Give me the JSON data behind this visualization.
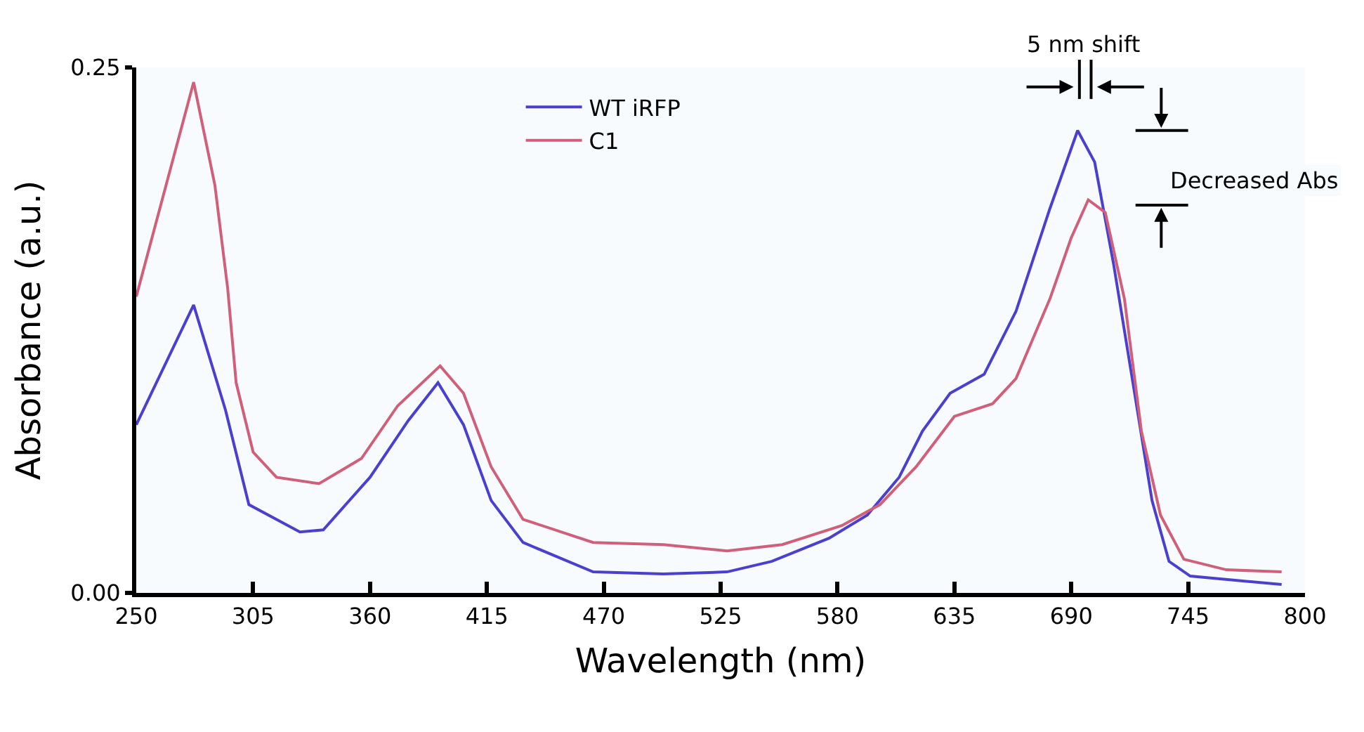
{
  "chart_data": {
    "type": "line",
    "xlabel": "Wavelength (nm)",
    "ylabel": "Absorbance (a.u.)",
    "xlim": [
      250,
      800
    ],
    "xticks": [
      250,
      305,
      360,
      415,
      470,
      525,
      580,
      635,
      690,
      745,
      800
    ],
    "ylim": [
      0,
      0.25
    ],
    "yticks": [
      {
        "value": 0,
        "label": "0.00"
      },
      {
        "value": 0.25,
        "label": "0.25"
      }
    ],
    "grid": false,
    "legend": "top",
    "marker": "none",
    "line_style": "solid",
    "series": [
      {
        "name": "WT iRFP",
        "color": "#4b3fd0",
        "x": [
          250,
          277,
          292,
          303,
          327,
          338,
          360,
          378,
          392,
          404,
          417,
          432,
          465,
          498,
          528,
          549,
          576,
          594,
          609,
          620,
          633,
          649,
          664,
          680,
          693,
          701,
          710,
          719,
          728,
          736,
          746,
          789
        ],
        "values": [
          0.08,
          0.137,
          0.087,
          0.042,
          0.029,
          0.03,
          0.055,
          0.082,
          0.1,
          0.08,
          0.044,
          0.024,
          0.01,
          0.009,
          0.01,
          0.015,
          0.026,
          0.037,
          0.055,
          0.077,
          0.095,
          0.104,
          0.134,
          0.183,
          0.22,
          0.205,
          0.156,
          0.1,
          0.044,
          0.015,
          0.008,
          0.004
        ]
      },
      {
        "name": "C1",
        "color": "#d0607a",
        "x": [
          250,
          277,
          287,
          293,
          297,
          305,
          316,
          336,
          356,
          373,
          393,
          404,
          417,
          432,
          465,
          498,
          528,
          554,
          582,
          600,
          617,
          635,
          653,
          664,
          680,
          690,
          698,
          706,
          715,
          723,
          732,
          743,
          763,
          789
        ],
        "values": [
          0.141,
          0.243,
          0.194,
          0.145,
          0.1,
          0.067,
          0.055,
          0.052,
          0.064,
          0.089,
          0.108,
          0.095,
          0.06,
          0.035,
          0.024,
          0.023,
          0.02,
          0.023,
          0.032,
          0.042,
          0.06,
          0.084,
          0.09,
          0.102,
          0.14,
          0.169,
          0.187,
          0.181,
          0.14,
          0.077,
          0.037,
          0.016,
          0.011,
          0.01
        ]
      }
    ],
    "annotations": [
      "5 nm shift",
      "Decreased Abs"
    ]
  }
}
